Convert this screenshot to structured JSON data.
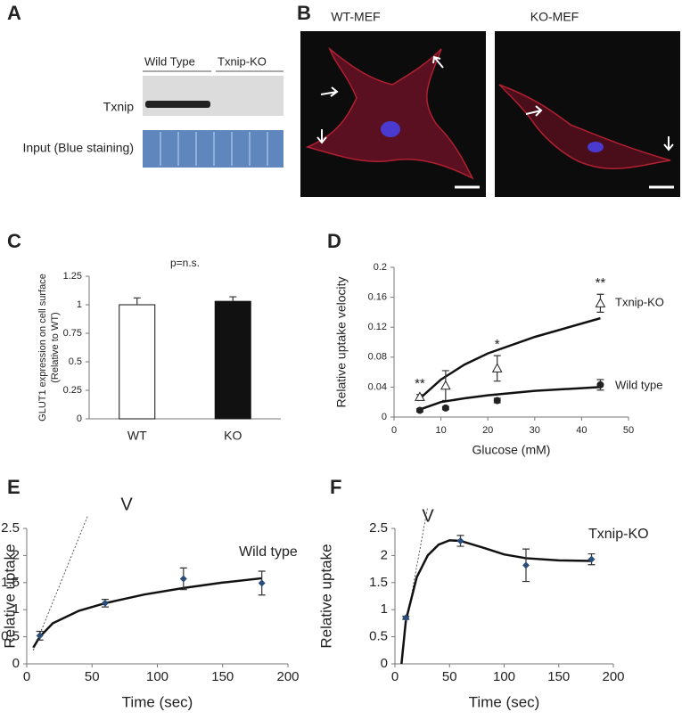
{
  "blot": {
    "panel": "A",
    "groups": [
      "Wild Type",
      "Txnip-KO"
    ],
    "rows": [
      "Txnip",
      "Input (Blue staining)"
    ]
  },
  "microscopy": {
    "panel": "B",
    "images": [
      "WT-MEF",
      "KO-MEF"
    ]
  },
  "chart_data": [
    {
      "type": "bar",
      "panel": "C",
      "title": "p=n.s.",
      "ylabel": [
        "GLUT1 expression on cell surface",
        "(Relative to WT)"
      ],
      "categories": [
        "WT",
        "KO"
      ],
      "values": [
        1.0,
        1.03
      ],
      "errors": [
        0.06,
        0.04
      ],
      "colors": [
        "#ffffff",
        "#111111"
      ],
      "ylim": [
        0,
        1.25
      ],
      "yticks": [
        0,
        0.25,
        0.5,
        0.75,
        1,
        1.25
      ]
    },
    {
      "type": "scatter",
      "panel": "D",
      "xlabel": "Glucose  (mM)",
      "ylabel": "Relative uptake velocity",
      "xlim": [
        0,
        50
      ],
      "xticks": [
        0,
        10,
        20,
        30,
        40,
        50
      ],
      "ylim": [
        0,
        0.2
      ],
      "yticks": [
        0,
        0.04,
        0.08,
        0.12,
        0.16,
        0.2
      ],
      "significance": [
        "**",
        null,
        "*",
        "**"
      ],
      "series": [
        {
          "name": "Txnip-KO",
          "marker": "open-triangle",
          "color": "#222222",
          "x": [
            5.5,
            11,
            22,
            44
          ],
          "values": [
            0.027,
            0.042,
            0.065,
            0.152
          ],
          "errors": [
            0.003,
            0.02,
            0.017,
            0.012
          ],
          "fit_x": [
            5,
            10,
            15,
            20,
            30,
            44
          ],
          "fit_y": [
            0.022,
            0.05,
            0.07,
            0.085,
            0.107,
            0.132
          ]
        },
        {
          "name": "Wild type",
          "marker": "filled-circle",
          "color": "#222222",
          "x": [
            5.5,
            11,
            22,
            44
          ],
          "values": [
            0.009,
            0.012,
            0.022,
            0.043
          ],
          "errors": [
            0.002,
            0.002,
            0.003,
            0.007
          ],
          "fit_x": [
            5,
            10,
            15,
            20,
            30,
            44
          ],
          "fit_y": [
            0.009,
            0.02,
            0.025,
            0.029,
            0.035,
            0.04
          ]
        }
      ]
    },
    {
      "type": "scatter",
      "panel": "E",
      "xlabel": "Time (sec)",
      "ylabel": "Relative uptake",
      "annotation": "V",
      "xlim": [
        0,
        200
      ],
      "xticks": [
        0,
        50,
        100,
        150,
        200
      ],
      "ylim": [
        0,
        2.5
      ],
      "yticks": [
        0,
        0.5,
        1,
        1.5,
        2,
        2.5
      ],
      "tangent_x": [
        5,
        47
      ],
      "tangent_y": [
        0.25,
        2.75
      ],
      "series": [
        {
          "name": "Wild type",
          "marker": "diamond",
          "color": "#2a4d7a",
          "x": [
            10,
            60,
            120,
            180
          ],
          "values": [
            0.52,
            1.12,
            1.57,
            1.49
          ],
          "errors": [
            0.08,
            0.07,
            0.2,
            0.22
          ],
          "fit_x": [
            5,
            10,
            20,
            40,
            60,
            90,
            120,
            150,
            180
          ],
          "fit_y": [
            0.3,
            0.5,
            0.75,
            0.98,
            1.12,
            1.28,
            1.4,
            1.5,
            1.58
          ]
        }
      ]
    },
    {
      "type": "scatter",
      "panel": "F",
      "xlabel": "Time (sec)",
      "ylabel": "Relative uptake",
      "annotation": "V",
      "xlim": [
        0,
        200
      ],
      "xticks": [
        0,
        50,
        100,
        150,
        200
      ],
      "ylim": [
        0,
        2.5
      ],
      "yticks": [
        0,
        0.5,
        1,
        1.5,
        2,
        2.5
      ],
      "tangent_x": [
        10,
        30
      ],
      "tangent_y": [
        0.7,
        2.9
      ],
      "series": [
        {
          "name": "Txnip-KO",
          "marker": "diamond",
          "color": "#2a4d7a",
          "x": [
            10,
            60,
            120,
            180
          ],
          "values": [
            0.85,
            2.27,
            1.82,
            1.93
          ],
          "errors": [
            0.03,
            0.1,
            0.3,
            0.1
          ],
          "fit_x": [
            6,
            10,
            20,
            30,
            40,
            50,
            60,
            80,
            100,
            120,
            150,
            180
          ],
          "fit_y": [
            0,
            0.8,
            1.6,
            2.0,
            2.2,
            2.28,
            2.27,
            2.15,
            2.02,
            1.95,
            1.91,
            1.9
          ]
        }
      ]
    }
  ]
}
